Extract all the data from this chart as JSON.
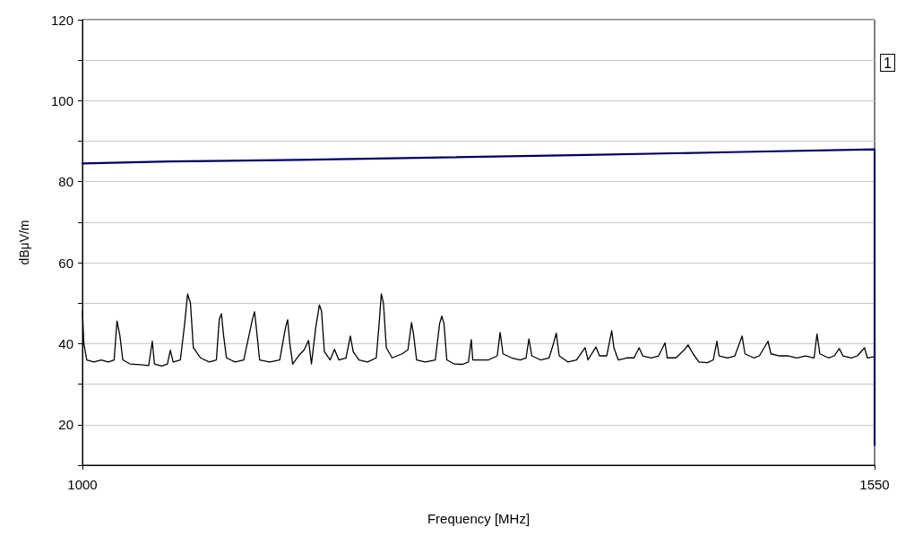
{
  "chart_data": {
    "type": "line",
    "xlabel": "Frequency [MHz]",
    "ylabel": "dBμV/m",
    "xlim": [
      1000,
      1550
    ],
    "xticks": [
      1000,
      1550
    ],
    "ylim": [
      10,
      120
    ],
    "yticks": [
      {
        "value": 10,
        "label": null
      },
      20,
      {
        "value": 30,
        "label": null
      },
      40,
      {
        "value": 50,
        "label": null
      },
      60,
      {
        "value": 70,
        "label": null
      },
      80,
      {
        "value": 90,
        "label": null
      },
      100,
      {
        "value": 110,
        "label": null
      },
      120
    ],
    "grid": "y",
    "marker": "none",
    "line_style": "solid",
    "annotations": [
      "1"
    ],
    "series": [
      {
        "color": "#000066",
        "x": [
          1000,
          1060,
          1150,
          1250,
          1350,
          1450,
          1550,
          1550
        ],
        "values": [
          84.5,
          85,
          85.4,
          86,
          86.6,
          87.3,
          88,
          15
        ]
      },
      {
        "color": "#000000",
        "x": [
          1000,
          1001,
          1003,
          1008,
          1013,
          1018,
          1022,
          1024,
          1026,
          1028,
          1033,
          1040,
          1046,
          1048.5,
          1050,
          1055,
          1059,
          1061,
          1063,
          1068,
          1071,
          1073,
          1075,
          1077,
          1082,
          1088,
          1093,
          1095,
          1096.5,
          1098,
          1100,
          1106,
          1112,
          1118,
          1119.5,
          1121,
          1123,
          1130,
          1137,
          1141,
          1142.5,
          1144,
          1146,
          1150,
          1154,
          1157,
          1159,
          1162,
          1164.5,
          1166,
          1168,
          1172,
          1175,
          1178,
          1183,
          1186,
          1188,
          1192,
          1198,
          1204,
          1206,
          1207.5,
          1209,
          1211,
          1215,
          1222,
          1226,
          1228.5,
          1230,
          1232,
          1238,
          1245,
          1248,
          1249.5,
          1251,
          1253,
          1258,
          1264,
          1268,
          1270,
          1271,
          1276,
          1282,
          1288,
          1290,
          1292,
          1298,
          1304,
          1308,
          1310,
          1312,
          1318,
          1324,
          1327,
          1329,
          1331,
          1337,
          1343,
          1349,
          1351,
          1356.5,
          1359,
          1364,
          1367.5,
          1369,
          1372,
          1378,
          1383,
          1386.5,
          1389,
          1395,
          1400,
          1404.5,
          1406,
          1412,
          1418,
          1420.5,
          1424,
          1428,
          1434,
          1438,
          1440.5,
          1442,
          1448,
          1453,
          1458,
          1460,
          1466,
          1470,
          1476,
          1478,
          1484,
          1490,
          1496,
          1502,
          1508,
          1510,
          1512,
          1518,
          1522,
          1525.5,
          1528,
          1534,
          1538,
          1543,
          1545,
          1550
        ],
        "values": [
          48,
          40,
          36,
          35.5,
          36,
          35.5,
          36,
          45.6,
          42,
          36,
          35,
          34.8,
          34.6,
          40.6,
          35,
          34.5,
          35,
          38.4,
          35.5,
          36,
          45,
          52.3,
          50,
          39,
          36.5,
          35.5,
          36,
          46,
          47.4,
          42,
          36.5,
          35.5,
          36,
          46,
          47.9,
          43,
          36,
          35.5,
          36,
          44,
          45.9,
          40,
          35,
          37,
          38.5,
          40.8,
          35,
          44,
          49.6,
          48,
          38,
          36,
          38.6,
          36,
          36.5,
          41.9,
          38,
          36,
          35.5,
          36.5,
          45,
          52.3,
          50,
          39,
          36.5,
          37.5,
          38.5,
          45.2,
          42,
          36,
          35.5,
          36,
          45,
          46.8,
          45,
          36,
          35,
          34.9,
          35.5,
          41,
          36,
          36,
          36,
          37,
          42.8,
          37.5,
          36.5,
          36,
          36.5,
          41.2,
          37,
          36,
          36.5,
          40,
          42.6,
          37,
          35.5,
          36,
          39,
          36,
          39.2,
          37,
          37,
          43.2,
          39,
          36,
          36.5,
          36.5,
          39,
          37,
          36.5,
          37,
          40.2,
          36.5,
          36.5,
          38.5,
          39.7,
          37.5,
          35.5,
          35.3,
          36,
          40.6,
          37,
          36.5,
          37,
          41.9,
          37.5,
          36.5,
          37,
          40.6,
          37.5,
          37,
          37,
          36.5,
          37,
          36.5,
          42.4,
          37.5,
          36.5,
          37,
          38.8,
          37,
          36.5,
          37,
          39,
          36.5,
          36.8
        ]
      }
    ]
  }
}
